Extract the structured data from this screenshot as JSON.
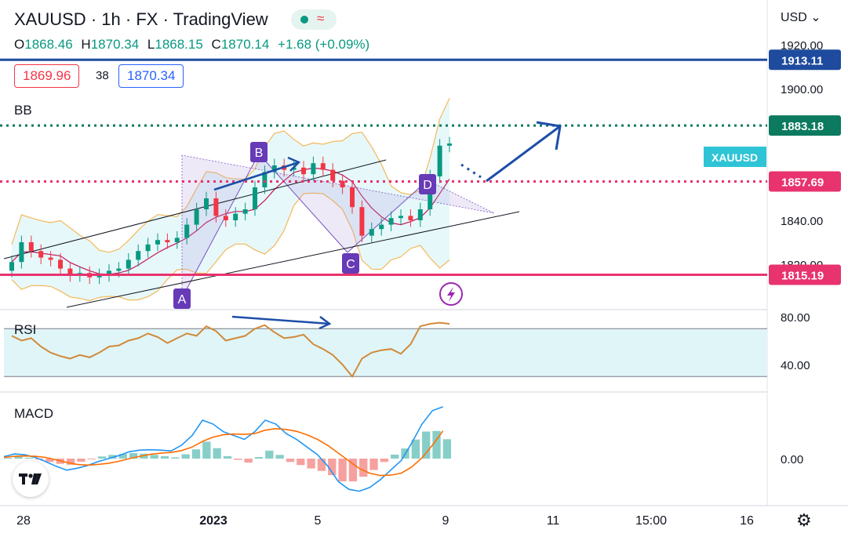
{
  "header": {
    "symbol": "XAUUSD",
    "interval": "1h",
    "exchange": "FX",
    "platform": "TradingView",
    "open_label": "O",
    "open": "1868.46",
    "high_label": "H",
    "high": "1870.34",
    "low_label": "L",
    "low": "1868.15",
    "close_label": "C",
    "close": "1870.14",
    "change": "+1.68 (+0.09%)",
    "bid": "1869.96",
    "spread": "38",
    "ask": "1870.34"
  },
  "axis": {
    "currency": "USD",
    "currency_caret": "⌄"
  },
  "colors": {
    "up": "#089981",
    "down": "#f23645",
    "blue_line": "#1e4b9e",
    "green_dotted": "#0b7a5e",
    "pink": "#e8336f",
    "bb_band": "#f5b858",
    "bb_basis": "#c2185b",
    "pattern_fill": "#b39ddb",
    "label_purple": "#673ab7",
    "rsi": "#d08a3a",
    "rsi_band": "#e0f5f7",
    "macd": "#2196f3",
    "signal": "#ff6d00",
    "annotation": "#1d4ea8",
    "xauusd_tag": "#2ec4d6"
  },
  "chart_data": [
    {
      "type": "candlestick",
      "title": "XAUUSD · 1h · FX",
      "indicator": "BB",
      "x_ticks": [
        "28",
        "2023",
        "5",
        "9",
        "11",
        "15:00",
        "16"
      ],
      "y_ticks": [
        "1920.00",
        "1900.00",
        "1840.00",
        "1820.00"
      ],
      "ylim": [
        1804,
        1930
      ],
      "price_lines": [
        {
          "value": 1913.11,
          "label": "1913.11",
          "style": "solid",
          "color": "#1e4b9e"
        },
        {
          "value": 1883.18,
          "label": "1883.18",
          "style": "dotted",
          "color": "#0b7a5e"
        },
        {
          "value": 1857.69,
          "label": "1857.69",
          "style": "dotted",
          "color": "#e8336f"
        },
        {
          "value": 1815.19,
          "label": "1815.19",
          "style": "solid",
          "color": "#e8336f"
        }
      ],
      "symbol_tag": "XAUUSD",
      "pattern_points": [
        "A",
        "B",
        "C",
        "D"
      ],
      "closes": [
        1821,
        1830,
        1826,
        1823,
        1822,
        1818,
        1815,
        1816,
        1814,
        1815,
        1817,
        1818,
        1822,
        1826,
        1829,
        1831,
        1830,
        1832,
        1838,
        1845,
        1850,
        1842,
        1840,
        1843,
        1845,
        1855,
        1862,
        1865,
        1863,
        1864,
        1861,
        1866,
        1863,
        1858,
        1855,
        1846,
        1833,
        1836,
        1838,
        1841,
        1842,
        1840,
        1845,
        1860,
        1874,
        1875
      ]
    },
    {
      "type": "line",
      "indicator": "RSI",
      "y_ticks": [
        "80.00",
        "40.00"
      ],
      "ylim": [
        20,
        90
      ],
      "band": [
        30,
        70
      ],
      "values": [
        64,
        60,
        62,
        55,
        50,
        47,
        45,
        48,
        46,
        50,
        55,
        56,
        60,
        62,
        66,
        63,
        58,
        62,
        66,
        64,
        72,
        68,
        60,
        62,
        64,
        70,
        73,
        67,
        62,
        63,
        65,
        57,
        53,
        48,
        40,
        30,
        45,
        50,
        52,
        53,
        49,
        57,
        72,
        74,
        75,
        74
      ]
    },
    {
      "type": "bar",
      "indicator": "MACD",
      "y_ticks": [
        "0.00"
      ],
      "ylim": [
        -10,
        15
      ],
      "macd": [
        0.5,
        1.2,
        1.0,
        0.3,
        -0.8,
        -2.0,
        -3.0,
        -2.5,
        -1.8,
        -0.8,
        0.0,
        0.8,
        1.8,
        2.2,
        2.3,
        2.2,
        2.0,
        3.5,
        6.0,
        10.0,
        9.0,
        7.0,
        6.0,
        5.0,
        7.0,
        10.0,
        9.0,
        6.5,
        5.0,
        3.0,
        1.0,
        -2.0,
        -6.0,
        -8.0,
        -8.5,
        -7.5,
        -5.5,
        -3.0,
        -0.5,
        4.0,
        9.0,
        12.5,
        13.5
      ],
      "signal": [
        0.3,
        0.6,
        0.7,
        0.6,
        0.3,
        -0.3,
        -1.0,
        -1.5,
        -1.7,
        -1.5,
        -1.2,
        -0.7,
        0.0,
        0.6,
        1.1,
        1.4,
        1.6,
        2.1,
        3.0,
        4.5,
        5.6,
        6.2,
        6.4,
        6.3,
        6.5,
        7.4,
        7.8,
        7.6,
        7.1,
        6.2,
        5.0,
        3.4,
        1.4,
        -0.6,
        -2.6,
        -3.8,
        -4.4,
        -4.3,
        -3.8,
        -2.2,
        0.2,
        3.5,
        7.2
      ]
    }
  ]
}
